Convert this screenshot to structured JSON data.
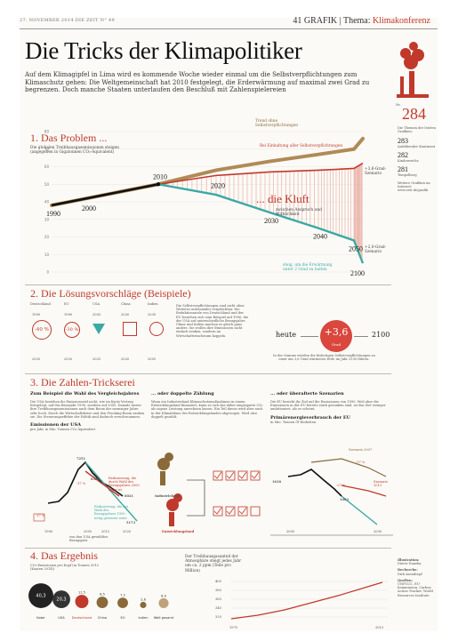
{
  "header": {
    "date": "27. NOVEMBER 2014  DIE ZEIT  N° 49",
    "page_num": "41",
    "section": "GRAFIK",
    "sep": "|",
    "thema_label": "Thema:",
    "thema": "Klimakonferenz"
  },
  "title": "Die Tricks der Klimapolitiker",
  "intro": "Auf dem Klimagipfel in Lima wird es kommende Woche wieder einmal um die Selbstverpflichtungen zum Klimaschutz gehen: Die Weltgemeinschaft hat 2010 festgelegt, die Erderwärmung auf maximal zwei Grad zu begrenzen. Doch manche Staaten unterlaufen den Beschluß mit Zahlenspielereien",
  "sidebar": {
    "nr_label": "Nr.",
    "number": "284",
    "desc": "Die Themen der letzten Grafiken:",
    "items": [
      {
        "num": "283",
        "label": "Antiliberaler Kontinent"
      },
      {
        "num": "282",
        "label": "Kinderreiche"
      },
      {
        "num": "281",
        "label": "Tempelberg"
      }
    ],
    "more": "Weitere Grafiken im Internet: www.zeit.de/grafik",
    "credits": [
      {
        "label": "Illustration:",
        "value": "Dieter Duneka"
      },
      {
        "label": "Recherche:",
        "value": "Dirk Asendorpf"
      },
      {
        "label": "Quellen:",
        "value": "UNFCCC, EU-Kommission, Carbon Action Tracker, World Resources Institute"
      }
    ]
  },
  "section1": {
    "title": "1. Das Problem ...",
    "subtitle": "Die globalen Treibhausgasemissionen steigen (angegeben in Gigatonnen CO₂-Äquivalent)",
    "trend_label": "Trend ohne Selbstverpflichtungen",
    "commit_label": "Bei Einhaltung aller Selbstverpflichtungen",
    "scen3_label": "+3,6-Grad-Szenario",
    "kluft": "... die Kluft",
    "kluft_sub": "zwischen Anspruch und Wirklichkeit",
    "scen2_label": "+2,0-Grad-Szenario",
    "scen2_note": "steig, um die Erwärmung unter 2 Grad zu halten",
    "years": [
      "1990",
      "2000",
      "2010",
      "2020",
      "2030",
      "2040",
      "2050",
      "2100"
    ]
  },
  "chart_data": {
    "type": "area",
    "title": "1. Das Problem ...",
    "subtitle": "Die globalen Treibhausgasemissionen steigen (angegeben in Gigatonnen CO₂-Äquivalent)",
    "ylim": [
      0,
      80
    ],
    "yticks": [
      0,
      10,
      20,
      30,
      40,
      50,
      60,
      70,
      80
    ],
    "x": [
      1990,
      2000,
      2010,
      2020,
      2030,
      2040,
      2050,
      2100
    ],
    "series": [
      {
        "name": "Trend ohne Selbstverpflichtungen",
        "values": [
          38,
          42,
          50,
          58,
          63,
          67,
          70,
          76
        ]
      },
      {
        "name": "Bei Einhaltung aller Selbstverpflichtungen",
        "values": [
          38,
          42,
          50,
          55,
          57,
          58,
          59,
          62
        ]
      },
      {
        "name": "+2,0-Grad-Szenario",
        "values": [
          null,
          null,
          50,
          44,
          34,
          25,
          18,
          5
        ]
      }
    ]
  },
  "section2": {
    "title": "2. Die Lösungsvorschläge (Beispiele)",
    "cols": [
      {
        "name": "Deutschland",
        "value": "-40 %"
      },
      {
        "name": "EU",
        "value": "-30 %"
      },
      {
        "name": "USA",
        "value": ""
      },
      {
        "name": "China",
        "value": ""
      },
      {
        "name": "Indien",
        "value": ""
      }
    ],
    "years": [
      "2020",
      "1990",
      "2020",
      "2005",
      "2025",
      "2030",
      "2020",
      "2030",
      "2005"
    ],
    "note": "Die Selbstverpflichtungen sind nicht ohne Weiteres miteinander vergleichbar. Die Reduktionsziele von Deutschland und der EU beziehen sich zum Beispiel auf 1990, die der USA auf unterschiedliche Bezugsjahre. China und Indien machen es gleich ganz anders: Sie wollen ihre Emissionen nicht einfach senken, sondern an Wirtschaftswachstum koppeln.",
    "heute": "heute",
    "deg": "+3,6",
    "deg_unit": "Grad",
    "to": "2100",
    "deg_note": "In der Summe würden die bisherigen Selbstverpflichtungen zu einer um 3,6 Grad wärmeren Erde im Jahr 2100 führen."
  },
  "section3": {
    "title": "3. Die Zahlen-Trickserei",
    "c1": {
      "head": "Zum Beispiel die Wahl des Vergleichsjahres",
      "text": "Die USA beziehen ihr Emissionsziel nicht, wie im Kyoto-Vertrag festgelegt, auf das Basisjahr 1990, sondern auf 2005. Damals waren ihre Treibhausgasemissionen nach dem Boom der neunziger Jahre sehr hoch. Durch die Wirtschaftskrise und den Fracking-Boom sanken sie. Die Steuerungseffekte der Politik sind dadurch verschwommen.",
      "sub": "Emissionen der USA",
      "unit": "pro Jahr, in Mio. Tonnen CO₂-Äquivalent",
      "v1": "7251",
      "v2": "6525",
      "v3": "6021",
      "v4": "5173",
      "p1": "-17 %",
      "p2": "-17 %",
      "note1": "Reduzierung, die durch Wahl des Bezugsjahres 2005 nötig ist",
      "note2": "Reduzierung, die bei Wahl des Bezugsjahres 1990 nötig gewesen wäre",
      "years": [
        "1990",
        "2005",
        "2012",
        "2020"
      ],
      "xnote": "von den USA gewähltes Bezugsjahr"
    },
    "c2": {
      "head": "... oder doppelte Zählung",
      "text": "Wenn ein Industrieland Klimaschutzmaßnahmen in einem Entwicklungsland finanziert, kann es sich das dabei eingesparte CO₂ als eigene Leistung anrechnen lassen. Ein Teil davon wird aber auch in der Klimabilanz des Entwicklungslandes abgezogen. Wird also doppelt gezählt.",
      "l1": "Industrieland",
      "l2": "Entwicklungsland"
    },
    "c3": {
      "head": "... oder überalterte Szenarien",
      "text": "Die EU bezieht ihr Ziel auf die Emissionen von 1990. Weil aber die Emissionen in der EU bereits stark gesunken sind, ist das Ziel weniger ambitioniert, als es scheint.",
      "sub": "Primärenergieverbrauch der EU",
      "unit": "in Mio. Tonnen Öl-Einheiten",
      "v1": "1618",
      "v2": "1483",
      "p1": "-27 %",
      "p2": "-27 %",
      "s1": "Szenario 2007",
      "s2": "Szenario 2013",
      "y1": "2005",
      "y2": "2030"
    }
  },
  "section4": {
    "title": "4. Das Ergebnis",
    "subtitle": "CO₂-Emissionen pro Kopf (in Tonnen 2012 (Kaaten 2014))",
    "bars": [
      {
        "name": "Katar",
        "value": "40,3"
      },
      {
        "name": "USA",
        "value": "20,3"
      },
      {
        "name": "Deutschland",
        "value": "11,5"
      },
      {
        "name": "China",
        "value": "8,5"
      },
      {
        "name": "EU",
        "value": "7,2"
      },
      {
        "name": "Indien",
        "value": "2,6"
      },
      {
        "name": "Welt gesamt",
        "value": "6,4"
      }
    ],
    "lead": "Der Treibhausgasanteil der Atmosphäre steigt jedes Jahr um ca. 2 ppm (Teile pro Million)",
    "chart_years": [
      "1975",
      "2013"
    ],
    "chart_vals": [
      "400",
      "380",
      "360",
      "340",
      "320"
    ]
  }
}
